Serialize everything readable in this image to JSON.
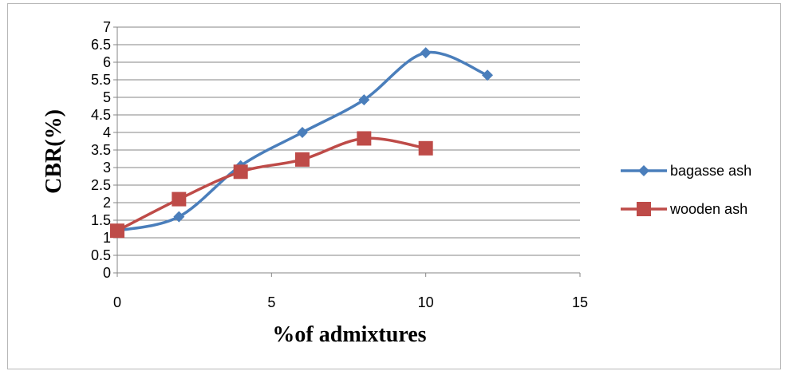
{
  "chart_data": {
    "type": "line",
    "title": "",
    "xlabel": "%of admixtures",
    "ylabel": "CBR(%)",
    "xlim": [
      0,
      15
    ],
    "ylim": [
      0,
      7
    ],
    "xticks": [
      0,
      5,
      10,
      15
    ],
    "yticks": [
      0,
      0.5,
      1,
      1.5,
      2,
      2.5,
      3,
      3.5,
      4,
      4.5,
      5,
      5.5,
      6,
      6.5,
      7
    ],
    "grid": true,
    "smooth": true,
    "legend_position": "right",
    "series": [
      {
        "name": "bagasse ash",
        "color": "#4a7ebb",
        "marker": "diamond",
        "x": [
          0,
          2,
          4,
          6,
          8,
          10,
          12
        ],
        "y": [
          1.2,
          1.6,
          3.05,
          4.0,
          4.93,
          6.27,
          5.63
        ]
      },
      {
        "name": "wooden ash",
        "color": "#be4b48",
        "marker": "square",
        "x": [
          0,
          2,
          4,
          6,
          8,
          10
        ],
        "y": [
          1.2,
          2.1,
          2.88,
          3.23,
          3.83,
          3.55
        ]
      }
    ]
  }
}
